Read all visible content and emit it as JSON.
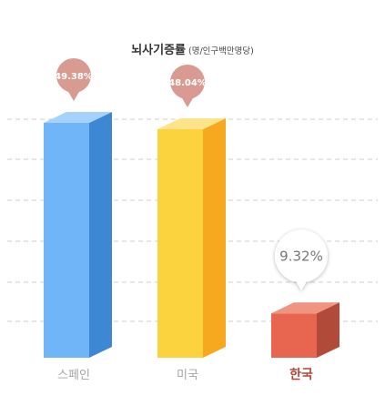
{
  "chart_data": {
    "type": "bar",
    "title": "뇌사기증률",
    "subtitle": "(명/인구백만명당)",
    "categories": [
      "스페인",
      "미국",
      "한국"
    ],
    "values": [
      49.38,
      48.04,
      9.32
    ],
    "value_labels": [
      "49.38%",
      "48.04%",
      "9.32%"
    ],
    "unit": "%",
    "highlight_category": "한국",
    "grid": true,
    "grid_style": "dashed",
    "bar_style": "3d-box",
    "colors": {
      "스페인": {
        "front": "#6fb5f7",
        "side": "#3d87d4",
        "top": "#a4d2fb"
      },
      "미국": {
        "front": "#fad33f",
        "side": "#f6a91f",
        "top": "#fde489"
      },
      "한국": {
        "front": "#e8654f",
        "side": "#b14a39",
        "top": "#f09381"
      }
    },
    "label_colors": {
      "default": "#a5a5a5",
      "highlight": "#b4473a"
    },
    "bubble_color": "#d99a92",
    "highlight_bubble_text_color": "#777777",
    "grid_color": "#cfcfcf"
  }
}
